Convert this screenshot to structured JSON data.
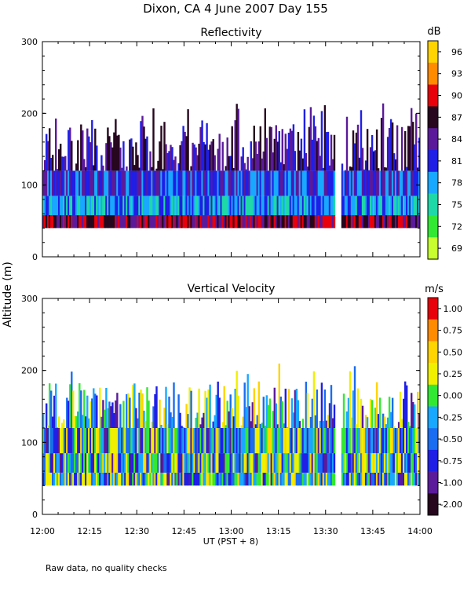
{
  "title": "Dixon, CA  4 June 2007  Day 155",
  "footnote": "Raw data, no quality checks",
  "shared_ylabel": "Altitude (m)",
  "chart_data": [
    {
      "type": "heatmap",
      "title": "Reflectivity",
      "xlabel": "",
      "ylabel": "Altitude (m)",
      "xlim": [
        "12:00",
        "14:00"
      ],
      "ylim": [
        0,
        300
      ],
      "y_ticks": [
        "0",
        "100",
        "200",
        "300"
      ],
      "x_ticks": [
        "12:00",
        "12:15",
        "12:30",
        "12:45",
        "13:00",
        "13:15",
        "13:30",
        "13:45",
        "14:00"
      ],
      "data_altitude_range_m": [
        40,
        220
      ],
      "gap_time_range": [
        "13:33",
        "13:35"
      ],
      "colorbar": {
        "unit": "dB",
        "labels": [
          "96",
          "93",
          "90",
          "87",
          "84",
          "81",
          "78",
          "75",
          "72",
          "69"
        ],
        "colors": [
          "#ffd400",
          "#ff8c00",
          "#e8000b",
          "#26071e",
          "#5a1a9a",
          "#1f1fe6",
          "#19a8ff",
          "#1ed8a8",
          "#33e833",
          "#c8ff2e"
        ]
      }
    },
    {
      "type": "heatmap",
      "title": "Vertical Velocity",
      "xlabel": "UT  (PST + 8)",
      "ylabel": "Altitude (m)",
      "xlim": [
        "12:00",
        "14:00"
      ],
      "ylim": [
        0,
        300
      ],
      "y_ticks": [
        "0",
        "100",
        "200",
        "300"
      ],
      "x_ticks": [
        "12:00",
        "12:15",
        "12:30",
        "12:45",
        "13:00",
        "13:15",
        "13:30",
        "13:45",
        "14:00"
      ],
      "data_altitude_range_m": [
        40,
        220
      ],
      "gap_time_range": [
        "13:33",
        "13:35"
      ],
      "colorbar": {
        "unit": "m/s",
        "labels": [
          "1.00",
          "0.75",
          "0.50",
          "0.25",
          "0.00",
          "-0.25",
          "-0.50",
          "-0.75",
          "-1.00",
          "-2.00"
        ],
        "colors": [
          "#e8000b",
          "#ff8c00",
          "#ffd400",
          "#f0f000",
          "#33e833",
          "#19a8ff",
          "#1a6cf0",
          "#1f1fe6",
          "#5a1a9a",
          "#26071e"
        ]
      }
    }
  ]
}
